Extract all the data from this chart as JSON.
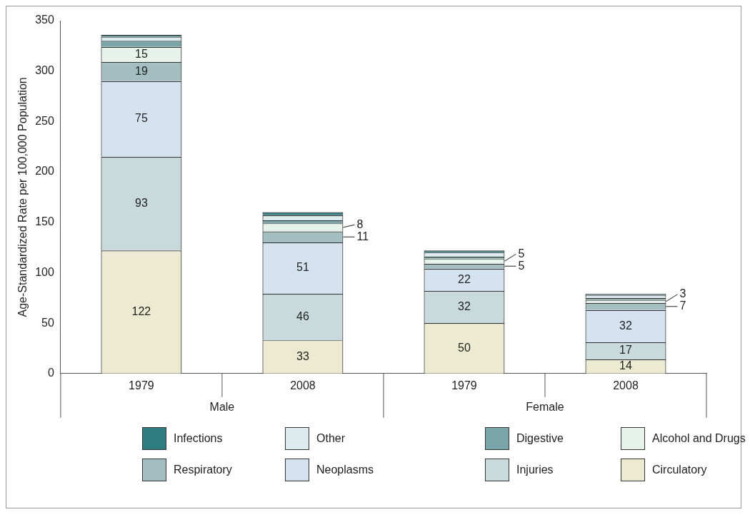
{
  "chart_data": {
    "type": "bar",
    "stacked": true,
    "ylabel": "Age-Standardized Rate per 100,000 Population",
    "categories": [
      "1979",
      "2008",
      "1979",
      "2008"
    ],
    "annotations": [
      "Male",
      "Female"
    ],
    "ylim": [
      0,
      350
    ],
    "yticks": [
      0,
      50,
      100,
      150,
      200,
      250,
      300,
      350
    ],
    "grid": false,
    "legend": "bottom",
    "series": [
      {
        "name": "Circulatory",
        "color": "#ecebd2",
        "values": [
          122,
          33,
          50,
          14
        ],
        "value_labels": [
          "122",
          "33",
          "50",
          "14"
        ]
      },
      {
        "name": "Injuries",
        "color": "#c9dadc",
        "values": [
          93,
          46,
          32,
          17
        ],
        "value_labels": [
          "93",
          "46",
          "32",
          "17"
        ]
      },
      {
        "name": "Neoplasms",
        "color": "#d5e2f0",
        "values": [
          75,
          51,
          22,
          32
        ],
        "value_labels": [
          "75",
          "51",
          "22",
          "32"
        ]
      },
      {
        "name": "Respiratory",
        "color": "#a3bfc2",
        "values": [
          19,
          11,
          5,
          7
        ],
        "value_labels": [
          "19",
          "11",
          "5",
          "7"
        ]
      },
      {
        "name": "Alcohol and Drugs",
        "color": "#e6f2ea",
        "values": [
          15,
          8,
          5,
          3
        ],
        "value_labels": [
          "15",
          "8",
          "5",
          "3"
        ]
      },
      {
        "name": "Digestive",
        "color": "#7aa5aa",
        "values": [
          6,
          3,
          2,
          2
        ]
      },
      {
        "name": "Other",
        "color": "#dcebed",
        "values": [
          4,
          5,
          4,
          3
        ]
      },
      {
        "name": "Infections",
        "color": "#2e7b80",
        "values": [
          2,
          3,
          2,
          1
        ]
      }
    ]
  }
}
